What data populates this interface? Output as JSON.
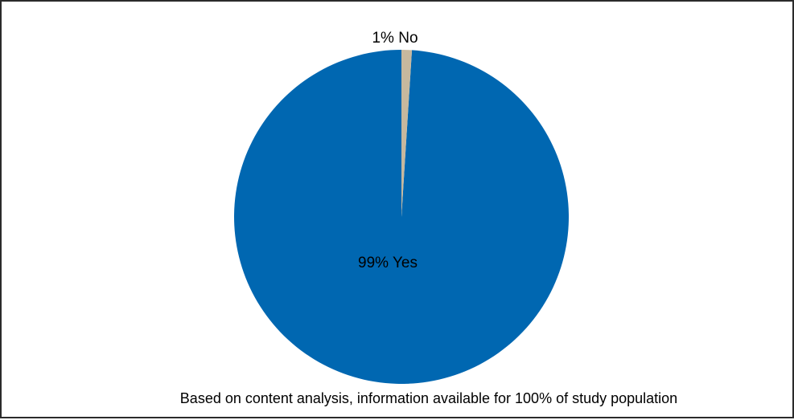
{
  "chart_data": {
    "type": "pie",
    "slices": [
      {
        "label": "Yes",
        "value": 99,
        "data_label": "99% Yes",
        "color": "#0067b1"
      },
      {
        "label": "No",
        "value": 1,
        "data_label": "1% No",
        "color": "#c7b89e"
      }
    ],
    "start": "12 o'clock",
    "direction": "counterclockwise"
  },
  "footnote": "Based on content analysis, information available for 100% of study population"
}
